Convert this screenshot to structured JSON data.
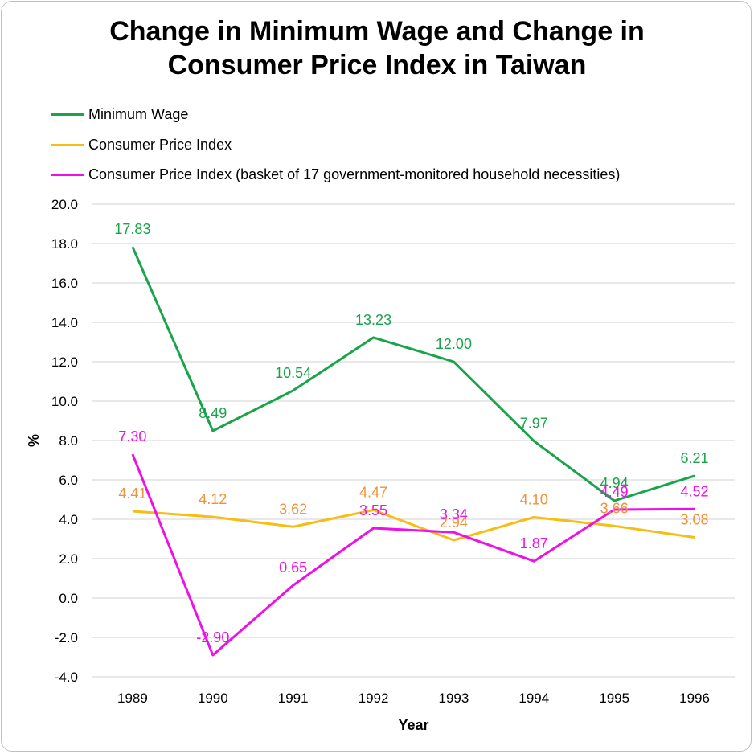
{
  "chart_data": {
    "type": "line",
    "title": "Change in Minimum Wage and Change in Consumer Price Index in Taiwan",
    "title_lines": [
      "Change in Minimum Wage and Change in",
      "Consumer Price Index in Taiwan"
    ],
    "xlabel": "Year",
    "ylabel": "%",
    "categories": [
      "1989",
      "1990",
      "1991",
      "1992",
      "1993",
      "1994",
      "1995",
      "1996"
    ],
    "ylim": [
      -4.0,
      20.0
    ],
    "ytick_step": 2.0,
    "grid": true,
    "legend_position": "top-left",
    "series": [
      {
        "name": "Minimum Wage",
        "color": "#1aa44a",
        "label_color": "#1aa44a",
        "values": [
          17.83,
          8.49,
          10.54,
          13.23,
          12.0,
          7.97,
          4.94,
          6.21
        ],
        "labels": [
          "17.83",
          "8.49",
          "10.54",
          "13.23",
          "12.00",
          "7.97",
          "4.94",
          "6.21"
        ]
      },
      {
        "name": "Consumer Price Index",
        "color": "#f5bd15",
        "label_color": "#f0923a",
        "values": [
          4.41,
          4.12,
          3.62,
          4.47,
          2.94,
          4.1,
          3.66,
          3.08
        ],
        "labels": [
          "4.41",
          "4.12",
          "3.62",
          "4.47",
          "2.94",
          "4.10",
          "3.66",
          "3.08"
        ]
      },
      {
        "name": "Consumer Price Index (basket of 17 government-monitored household necessities)",
        "color": "#ee10e6",
        "label_color": "#ee10e6",
        "values": [
          7.3,
          -2.9,
          0.65,
          3.55,
          3.34,
          1.87,
          4.49,
          4.52
        ],
        "labels": [
          "7.30",
          "-2.90",
          "0.65",
          "3.55",
          "3.34",
          "1.87",
          "4.49",
          "4.52"
        ]
      }
    ]
  }
}
